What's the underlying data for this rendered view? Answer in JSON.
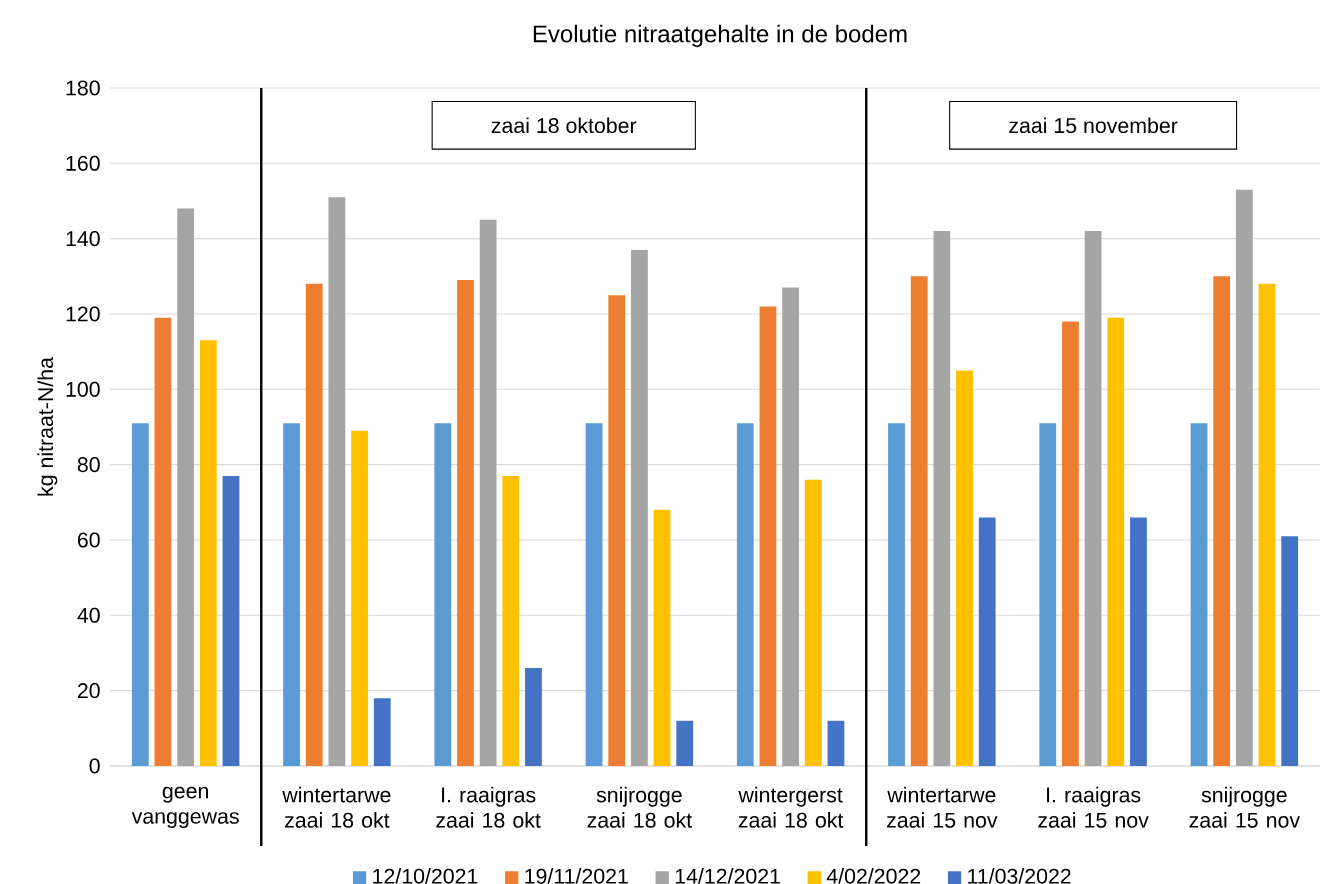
{
  "chart_data": {
    "type": "bar",
    "title": "Evolutie nitraatgehalte in de bodem",
    "ylabel": "kg nitraat-N/ha",
    "categories": [
      "geen vanggewas",
      "wintertarwe zaai 18 okt",
      "I. raaigras zaai 18 okt",
      "snijrogge zaai 18 okt",
      "wintergerst zaai 18 okt",
      "wintertarwe zaai 15 nov",
      "I. raaigras zaai 15 nov",
      "snijrogge zaai 15 nov"
    ],
    "series": [
      {
        "name": "12/10/2021",
        "color": "#5b9bd5",
        "values": [
          91,
          91,
          91,
          91,
          91,
          91,
          91,
          91
        ]
      },
      {
        "name": "19/11/2021",
        "color": "#ed7d31",
        "values": [
          119,
          128,
          129,
          125,
          122,
          130,
          118,
          130
        ]
      },
      {
        "name": "14/12/2021",
        "color": "#a5a5a5",
        "values": [
          148,
          151,
          145,
          137,
          127,
          142,
          142,
          153
        ]
      },
      {
        "name": "4/02/2022",
        "color": "#ffc000",
        "values": [
          113,
          89,
          77,
          68,
          76,
          105,
          119,
          128
        ]
      },
      {
        "name": "11/03/2022",
        "color": "#4472c4",
        "values": [
          77,
          18,
          26,
          12,
          12,
          66,
          66,
          61
        ]
      }
    ],
    "ylim": [
      0,
      180
    ],
    "yticks": [
      0,
      20,
      40,
      60,
      80,
      100,
      120,
      140,
      160,
      180
    ],
    "grid": "y",
    "legend": "bottom",
    "annotations": [
      "zaai 18 oktober",
      "zaai 15 november"
    ]
  }
}
